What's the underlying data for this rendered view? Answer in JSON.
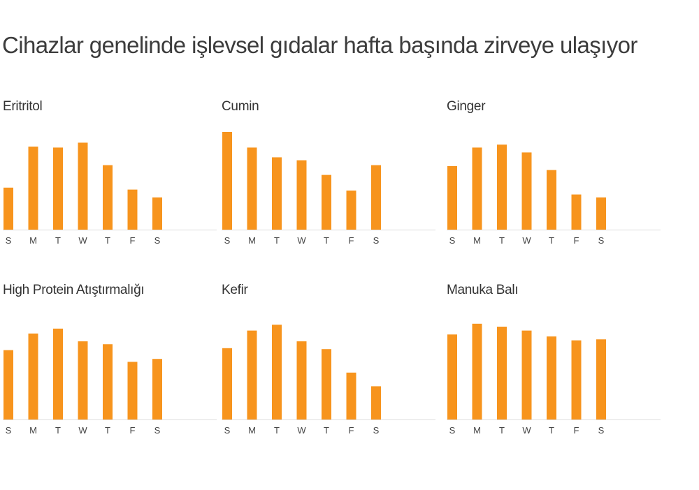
{
  "title": "Cihazlar genelinde işlevsel gıdalar hafta başında zirveye ulaşıyor",
  "colors": {
    "bar": "#f7941d",
    "baseline": "#dddddd",
    "text": "#3c3c3c"
  },
  "chart_data": [
    {
      "type": "bar",
      "title": "Eritritol",
      "categories": [
        "S",
        "M",
        "T",
        "W",
        "T",
        "F",
        "S"
      ],
      "values": [
        43,
        85,
        84,
        89,
        66,
        41,
        33
      ],
      "ylim": [
        0,
        100
      ]
    },
    {
      "type": "bar",
      "title": "Cumin",
      "categories": [
        "S",
        "M",
        "T",
        "W",
        "T",
        "F",
        "S"
      ],
      "values": [
        100,
        84,
        74,
        71,
        56,
        40,
        66
      ],
      "ylim": [
        0,
        100
      ]
    },
    {
      "type": "bar",
      "title": "Ginger",
      "categories": [
        "S",
        "M",
        "T",
        "W",
        "T",
        "F",
        "S"
      ],
      "values": [
        65,
        84,
        87,
        79,
        61,
        36,
        33
      ],
      "ylim": [
        0,
        100
      ]
    },
    {
      "type": "bar",
      "title": "High Protein Atıştırmalığı",
      "categories": [
        "S",
        "M",
        "T",
        "W",
        "T",
        "F",
        "S"
      ],
      "values": [
        71,
        88,
        93,
        80,
        77,
        59,
        62
      ],
      "ylim": [
        0,
        100
      ]
    },
    {
      "type": "bar",
      "title": "Kefir",
      "categories": [
        "S",
        "M",
        "T",
        "W",
        "T",
        "F",
        "S"
      ],
      "values": [
        73,
        91,
        97,
        80,
        72,
        48,
        34
      ],
      "ylim": [
        0,
        100
      ]
    },
    {
      "type": "bar",
      "title": "Manuka Balı",
      "categories": [
        "S",
        "M",
        "T",
        "W",
        "T",
        "F",
        "S"
      ],
      "values": [
        87,
        98,
        95,
        91,
        85,
        81,
        82
      ],
      "ylim": [
        0,
        100
      ]
    }
  ]
}
